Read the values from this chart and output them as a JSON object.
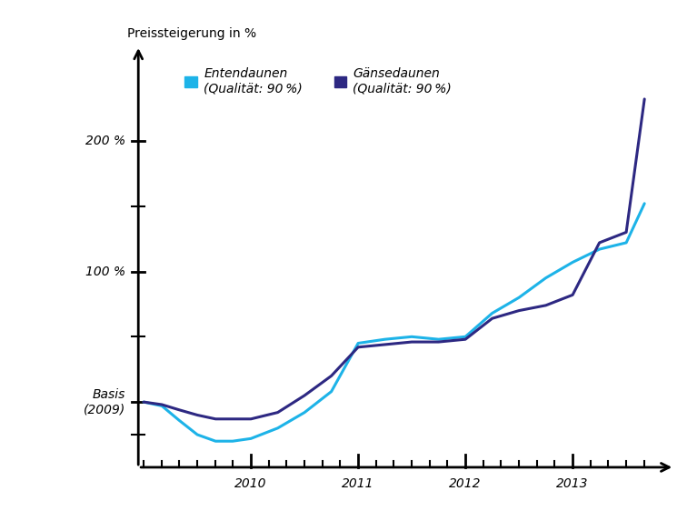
{
  "title_ylabel": "Preissteigerung in %",
  "ytick_labels": [
    "Basis\n(2009)",
    "100 %",
    "200 %"
  ],
  "ytick_values": [
    0,
    100,
    200
  ],
  "ylim": [
    -50,
    255
  ],
  "xlim": [
    2008.7,
    2013.9
  ],
  "x_axis_y": -50,
  "y_axis_x": 2008.95,
  "minor_xticks": [
    2009.0,
    2009.17,
    2009.33,
    2009.5,
    2009.67,
    2009.83,
    2010.0,
    2010.17,
    2010.33,
    2010.5,
    2010.67,
    2010.83,
    2011.0,
    2011.17,
    2011.33,
    2011.5,
    2011.67,
    2011.83,
    2012.0,
    2012.17,
    2012.33,
    2012.5,
    2012.67,
    2012.83,
    2013.0,
    2013.17,
    2013.33,
    2013.5,
    2013.67
  ],
  "major_xticks": [
    2010.0,
    2011.0,
    2012.0,
    2013.0
  ],
  "major_xlabel_offsets": [
    -0.05,
    -0.05,
    -0.05,
    -0.05
  ],
  "duck_color": "#1DB3E8",
  "goose_color": "#2D2882",
  "duck_label_line1": "Entendaunen",
  "duck_label_line2": "(Qualität: 90 %)",
  "goose_label_line1": "Gänsedaunen",
  "goose_label_line2": "(Qualität: 90 %)",
  "duck_x": [
    2009.0,
    2009.17,
    2009.33,
    2009.5,
    2009.67,
    2009.83,
    2010.0,
    2010.25,
    2010.5,
    2010.75,
    2011.0,
    2011.25,
    2011.5,
    2011.75,
    2012.0,
    2012.25,
    2012.5,
    2012.75,
    2013.0,
    2013.25,
    2013.5,
    2013.67
  ],
  "duck_y": [
    0,
    -3,
    -14,
    -25,
    -30,
    -30,
    -28,
    -20,
    -8,
    8,
    45,
    48,
    50,
    48,
    50,
    68,
    80,
    95,
    107,
    117,
    122,
    152
  ],
  "goose_x": [
    2009.0,
    2009.17,
    2009.33,
    2009.5,
    2009.67,
    2009.83,
    2010.0,
    2010.25,
    2010.5,
    2010.75,
    2011.0,
    2011.25,
    2011.5,
    2011.75,
    2012.0,
    2012.25,
    2012.5,
    2012.75,
    2013.0,
    2013.25,
    2013.5,
    2013.67
  ],
  "goose_y": [
    0,
    -2,
    -6,
    -10,
    -13,
    -13,
    -13,
    -8,
    5,
    20,
    42,
    44,
    46,
    46,
    48,
    64,
    70,
    74,
    82,
    122,
    130,
    232
  ],
  "background_color": "#FFFFFF",
  "line_width": 2.2,
  "font_size": 10,
  "label_font_size": 10
}
